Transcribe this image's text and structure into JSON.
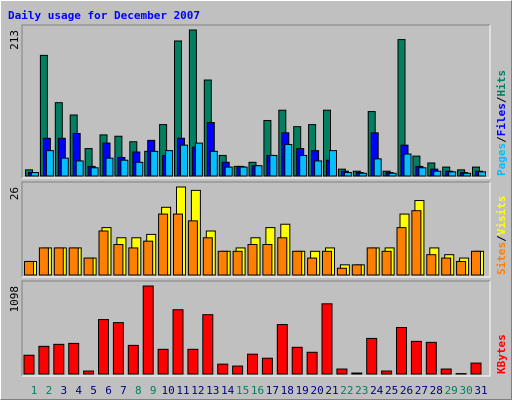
{
  "chart_data": [
    {
      "type": "bar",
      "title": "Daily usage for December 2007",
      "legend_separator": "/",
      "ylim": [
        0,
        213
      ],
      "yticks": [
        213
      ],
      "series": [
        {
          "name": "Hits",
          "color": "#008060",
          "values": [
            9,
            176,
            107,
            89,
            40,
            60,
            58,
            50,
            36,
            75,
            197,
            213,
            140,
            30,
            14,
            20,
            81,
            96,
            72,
            75,
            96,
            10,
            7,
            94,
            7,
            199,
            29,
            19,
            13,
            9,
            13
          ]
        },
        {
          "name": "Files",
          "color": "#0000ff",
          "values": [
            5,
            55,
            55,
            62,
            14,
            48,
            27,
            35,
            52,
            30,
            55,
            42,
            78,
            20,
            14,
            15,
            30,
            63,
            40,
            37,
            23,
            7,
            5,
            63,
            5,
            45,
            14,
            10,
            7,
            5,
            7
          ]
        },
        {
          "name": "Pages",
          "color": "#00c0ff",
          "values": [
            5,
            37,
            26,
            22,
            12,
            26,
            23,
            20,
            36,
            37,
            45,
            48,
            36,
            13,
            13,
            15,
            30,
            46,
            30,
            22,
            37,
            5,
            4,
            25,
            4,
            32,
            12,
            7,
            6,
            4,
            6
          ]
        }
      ]
    },
    {
      "type": "bar",
      "legend_separator": "/",
      "ylim": [
        0,
        26
      ],
      "yticks": [
        26
      ],
      "series": [
        {
          "name": "Visits",
          "color": "#ffff00",
          "values": [
            4,
            8,
            8,
            8,
            5,
            14,
            11,
            11,
            12,
            20,
            26,
            25,
            13,
            7,
            8,
            11,
            14,
            15,
            7,
            7,
            8,
            3,
            3,
            8,
            8,
            18,
            22,
            8,
            6,
            5,
            7
          ]
        },
        {
          "name": "Sites",
          "color": "#ff8000",
          "values": [
            4,
            8,
            8,
            8,
            5,
            13,
            9,
            8,
            10,
            18,
            18,
            16,
            11,
            7,
            7,
            9,
            9,
            11,
            7,
            5,
            7,
            2,
            3,
            8,
            7,
            14,
            19,
            6,
            5,
            4,
            7
          ]
        }
      ]
    },
    {
      "type": "bar",
      "ylim": [
        0,
        1098
      ],
      "yticks": [
        1098
      ],
      "categories": [
        "1",
        "2",
        "3",
        "4",
        "5",
        "6",
        "7",
        "8",
        "9",
        "10",
        "11",
        "12",
        "13",
        "14",
        "15",
        "16",
        "17",
        "18",
        "19",
        "20",
        "21",
        "22",
        "23",
        "24",
        "25",
        "26",
        "27",
        "28",
        "29",
        "30",
        "31"
      ],
      "category_colors": [
        "#008060",
        "#008060",
        "#00007f",
        "#00007f",
        "#00007f",
        "#00007f",
        "#00007f",
        "#008060",
        "#008060",
        "#00007f",
        "#00007f",
        "#00007f",
        "#00007f",
        "#00007f",
        "#008060",
        "#008060",
        "#00007f",
        "#00007f",
        "#00007f",
        "#00007f",
        "#00007f",
        "#008060",
        "#008060",
        "#00007f",
        "#00007f",
        "#00007f",
        "#00007f",
        "#00007f",
        "#008060",
        "#008060",
        "#00007f"
      ],
      "series": [
        {
          "name": "KBytes",
          "color": "#ff0000",
          "values": [
            234,
            345,
            370,
            382,
            37,
            679,
            641,
            357,
            1098,
            308,
            802,
            308,
            740,
            123,
            99,
            247,
            197,
            617,
            333,
            271,
            876,
            62,
            12,
            444,
            37,
            580,
            407,
            395,
            62,
            5,
            136
          ]
        }
      ]
    }
  ]
}
